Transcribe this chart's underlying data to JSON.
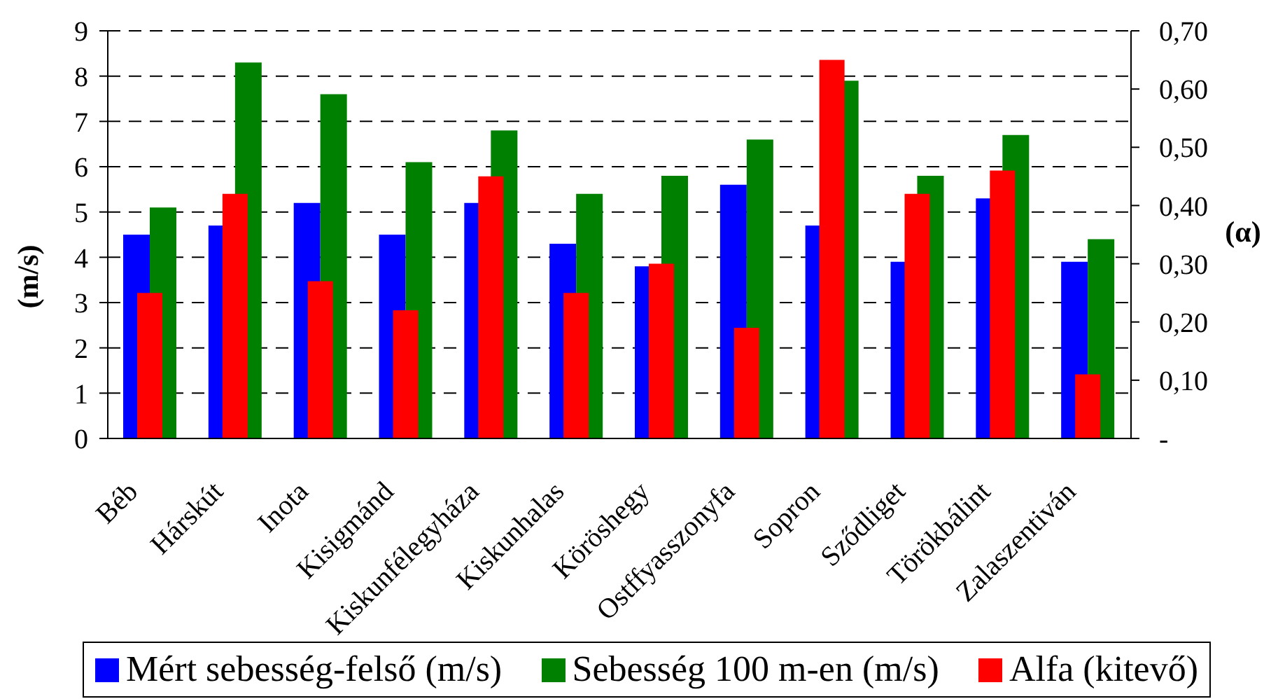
{
  "chart_data": {
    "type": "bar",
    "ylabel": "(m/s)",
    "y2label": "(α)",
    "categories": [
      "Béb",
      "Hárskút",
      "Inota",
      "Kisigmánd",
      "Kiskunfélegyháza",
      "Kiskunhalas",
      "Köröshegy",
      "Ostffyasszonyfa",
      "Sopron",
      "Sződliget",
      "Törökbálint",
      "Zalaszentiván"
    ],
    "series": [
      {
        "name": "Mért sebesség-felső (m/s)",
        "color": "#0000ff",
        "values": [
          4.5,
          4.7,
          5.2,
          4.5,
          5.2,
          4.3,
          3.8,
          5.6,
          4.7,
          3.9,
          5.3,
          3.9
        ]
      },
      {
        "name": "Sebesség 100 m-en (m/s)",
        "color": "#008000",
        "values": [
          5.1,
          8.3,
          7.6,
          6.1,
          6.8,
          5.4,
          5.8,
          6.6,
          7.9,
          5.8,
          6.7,
          4.4
        ]
      },
      {
        "name": "Alfa (kitevő)",
        "color": "#ff0000",
        "axis": "y2",
        "values": [
          0.25,
          0.42,
          0.27,
          0.22,
          0.45,
          0.25,
          0.3,
          0.19,
          0.65,
          0.42,
          0.46,
          0.11
        ]
      }
    ],
    "ylim": [
      0,
      9
    ],
    "yticks": [
      0,
      1,
      2,
      3,
      4,
      5,
      6,
      7,
      8,
      9
    ],
    "y2lim": [
      0,
      0.7
    ],
    "y2ticks": [
      {
        "value": 0,
        "label": "-"
      },
      {
        "value": 0.1,
        "label": "0,10"
      },
      {
        "value": 0.2,
        "label": "0,20"
      },
      {
        "value": 0.3,
        "label": "0,30"
      },
      {
        "value": 0.4,
        "label": "0,40"
      },
      {
        "value": 0.5,
        "label": "0,50"
      },
      {
        "value": 0.6,
        "label": "0,60"
      },
      {
        "value": 0.7,
        "label": "0,70"
      }
    ],
    "grid": "y",
    "legend": "bottom"
  }
}
